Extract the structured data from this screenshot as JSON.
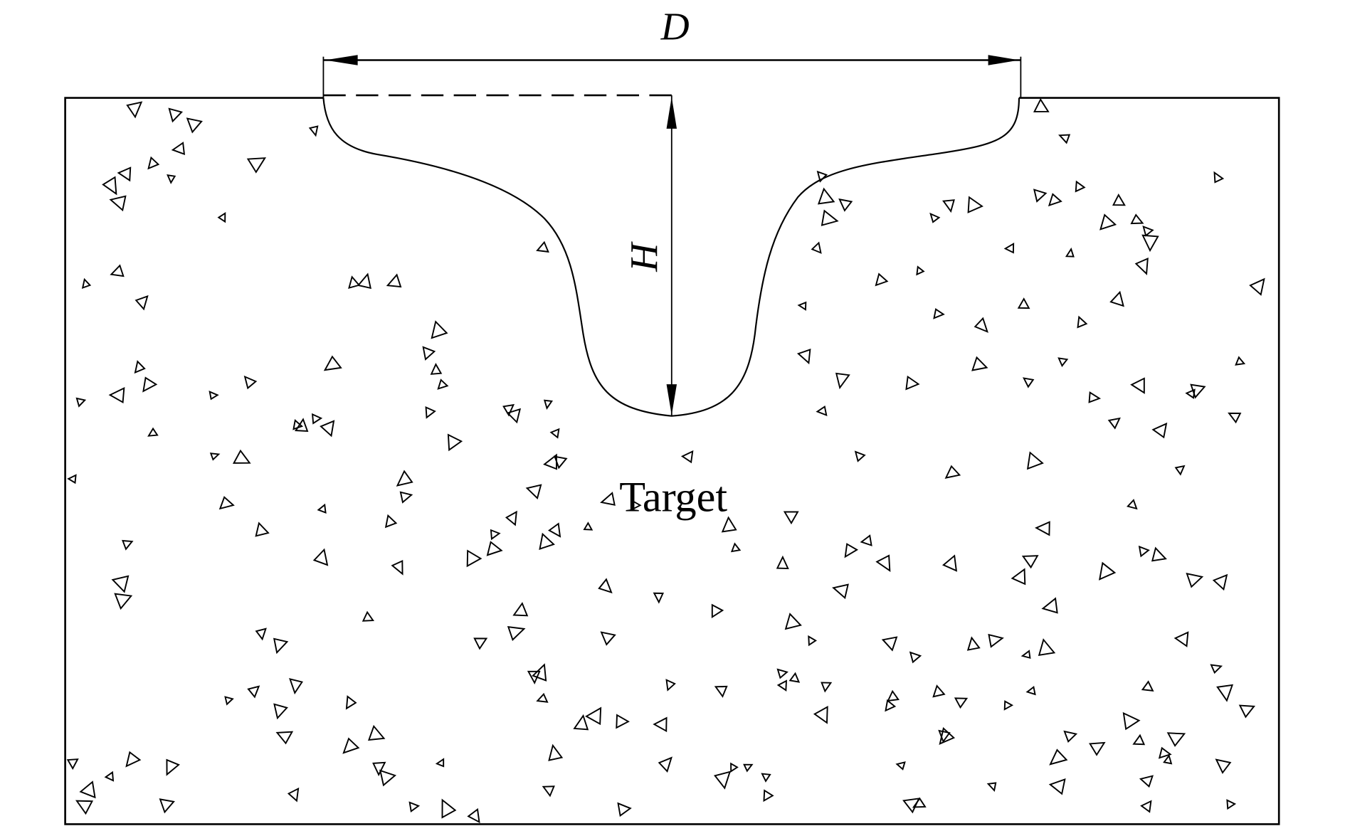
{
  "diagram": {
    "labels": {
      "diameter": "D",
      "depth": "H",
      "target": "Target"
    },
    "colors": {
      "line": "#000000",
      "background": "#ffffff"
    },
    "elements": [
      "target-block",
      "crater-profile",
      "diameter-dimension",
      "depth-dimension",
      "aggregate-particles"
    ]
  }
}
